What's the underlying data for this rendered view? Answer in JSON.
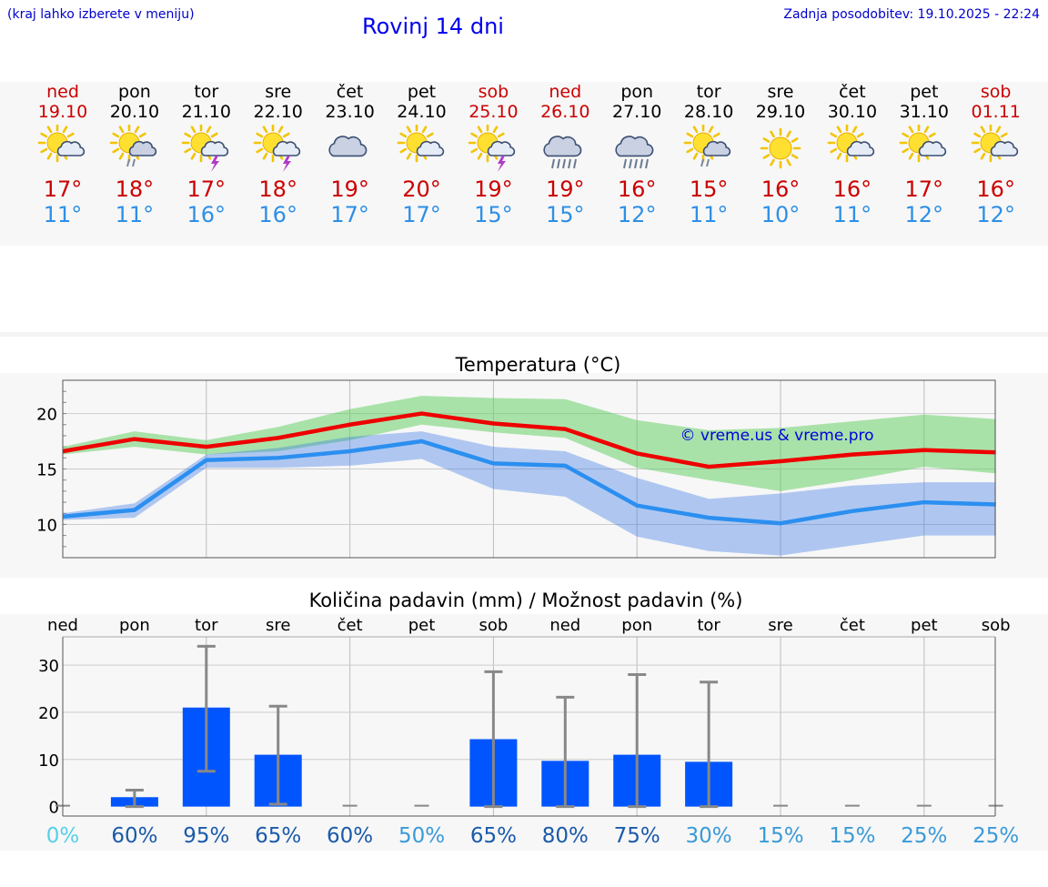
{
  "header": {
    "menu_hint": "(kraj lahko izberete v meniju)",
    "title": "Rovinj 14 dni",
    "updated": "Zadnja posodobitev: 19.10.2025 - 22:24"
  },
  "colors": {
    "weekend": "#cc0000",
    "weekday": "#000000",
    "max_temp": "#ee0000",
    "min_temp": "#2b8ff0",
    "max_band": "#a8e4a8",
    "min_band": "#aac4f0",
    "bars": "#0055ff",
    "errorbar": "#888888",
    "watermark": "#0000dd"
  },
  "days": [
    {
      "name": "ned",
      "date": "19.10",
      "weekend": true,
      "icon": "sun-cloud-icon",
      "tmax": "17°",
      "tmin": "11°"
    },
    {
      "name": "pon",
      "date": "20.10",
      "weekend": false,
      "icon": "sun-cloud-rain-icon",
      "tmax": "18°",
      "tmin": "11°"
    },
    {
      "name": "tor",
      "date": "21.10",
      "weekend": false,
      "icon": "sun-cloud-thunder-icon",
      "tmax": "17°",
      "tmin": "16°"
    },
    {
      "name": "sre",
      "date": "22.10",
      "weekend": false,
      "icon": "sun-cloud-thunder-icon",
      "tmax": "18°",
      "tmin": "16°"
    },
    {
      "name": "čet",
      "date": "23.10",
      "weekend": false,
      "icon": "cloudy-icon",
      "tmax": "19°",
      "tmin": "17°"
    },
    {
      "name": "pet",
      "date": "24.10",
      "weekend": false,
      "icon": "sun-cloud-icon",
      "tmax": "20°",
      "tmin": "17°"
    },
    {
      "name": "sob",
      "date": "25.10",
      "weekend": true,
      "icon": "sun-cloud-thunder-icon",
      "tmax": "19°",
      "tmin": "15°"
    },
    {
      "name": "ned",
      "date": "26.10",
      "weekend": true,
      "icon": "cloud-heavy-rain-icon",
      "tmax": "19°",
      "tmin": "15°"
    },
    {
      "name": "pon",
      "date": "27.10",
      "weekend": false,
      "icon": "cloud-heavy-rain-icon",
      "tmax": "16°",
      "tmin": "12°"
    },
    {
      "name": "tor",
      "date": "28.10",
      "weekend": false,
      "icon": "sun-cloud-rain-icon",
      "tmax": "15°",
      "tmin": "11°"
    },
    {
      "name": "sre",
      "date": "29.10",
      "weekend": false,
      "icon": "sun-icon",
      "tmax": "16°",
      "tmin": "10°"
    },
    {
      "name": "čet",
      "date": "30.10",
      "weekend": false,
      "icon": "sun-cloud-icon",
      "tmax": "16°",
      "tmin": "11°"
    },
    {
      "name": "pet",
      "date": "31.10",
      "weekend": false,
      "icon": "sun-cloud-icon",
      "tmax": "17°",
      "tmin": "12°"
    },
    {
      "name": "sob",
      "date": "01.11",
      "weekend": true,
      "icon": "sun-cloud-icon",
      "tmax": "16°",
      "tmin": "12°"
    }
  ],
  "chart_data": [
    {
      "type": "line",
      "title": "Temperatura (°C)",
      "x": [
        "ned",
        "pon",
        "tor",
        "sre",
        "čet",
        "pet",
        "sob",
        "ned",
        "pon",
        "tor",
        "sre",
        "čet",
        "pet",
        "sob"
      ],
      "ylim": [
        7,
        23
      ],
      "yticks": [
        10,
        15,
        20
      ],
      "grid": true,
      "series": [
        {
          "values": [
            16.6,
            17.7,
            17.0,
            17.8,
            19.0,
            20.0,
            19.1,
            18.6,
            16.4,
            15.2,
            15.7,
            16.3,
            16.7,
            16.5
          ]
        },
        {
          "values": [
            10.7,
            11.3,
            15.8,
            16.0,
            16.6,
            17.5,
            15.5,
            15.3,
            11.7,
            10.6,
            10.1,
            11.2,
            12.0,
            11.8
          ]
        }
      ],
      "bands": [
        {
          "lower": [
            16.3,
            17.0,
            16.3,
            16.6,
            17.6,
            19.0,
            18.3,
            17.8,
            15.1,
            14.0,
            13.0,
            14.0,
            15.2,
            14.6
          ],
          "upper": [
            17.0,
            18.4,
            17.6,
            18.8,
            20.4,
            21.6,
            21.4,
            21.3,
            19.4,
            18.5,
            18.7,
            19.3,
            19.9,
            19.5
          ]
        },
        {
          "lower": [
            10.4,
            10.6,
            15.1,
            15.1,
            15.3,
            15.9,
            13.2,
            12.5,
            8.9,
            7.6,
            7.2,
            8.1,
            9.0,
            9.0
          ],
          "upper": [
            11.0,
            11.9,
            16.3,
            16.9,
            17.9,
            18.4,
            17.0,
            16.6,
            14.2,
            12.3,
            12.8,
            13.5,
            13.8,
            13.8
          ]
        }
      ],
      "annotation": "© vreme.us & vreme.pro"
    },
    {
      "type": "bar",
      "title": "Količina padavin (mm) / Možnost padavin (%)",
      "categories": [
        "ned",
        "pon",
        "tor",
        "sre",
        "čet",
        "pet",
        "sob",
        "ned",
        "pon",
        "tor",
        "sre",
        "čet",
        "pet",
        "sob"
      ],
      "values": [
        0,
        2,
        21,
        11,
        0,
        0,
        14.3,
        9.7,
        11,
        9.5,
        0,
        0,
        0,
        0
      ],
      "error_low": [
        0,
        0,
        7.5,
        0.5,
        0,
        0,
        0,
        0,
        0,
        0,
        0,
        0,
        0,
        0
      ],
      "error_high": [
        0,
        3.5,
        34,
        21.3,
        0,
        0,
        28.6,
        23.2,
        28,
        26.4,
        0,
        0,
        0,
        0
      ],
      "probability": [
        "0%",
        "60%",
        "95%",
        "65%",
        "60%",
        "50%",
        "65%",
        "80%",
        "75%",
        "30%",
        "15%",
        "15%",
        "25%",
        "25%"
      ],
      "probability_colors": [
        "#55d0e8",
        "#1a5aaa",
        "#1a5aaa",
        "#1a5aaa",
        "#1a5aaa",
        "#3a9ad8",
        "#1a5aaa",
        "#1a5aaa",
        "#1a5aaa",
        "#3a9ad8",
        "#3a9ad8",
        "#3a9ad8",
        "#3a9ad8",
        "#3a9ad8"
      ],
      "ylim": [
        -2,
        36
      ],
      "yticks": [
        0,
        10,
        20,
        30
      ],
      "grid": true
    }
  ]
}
